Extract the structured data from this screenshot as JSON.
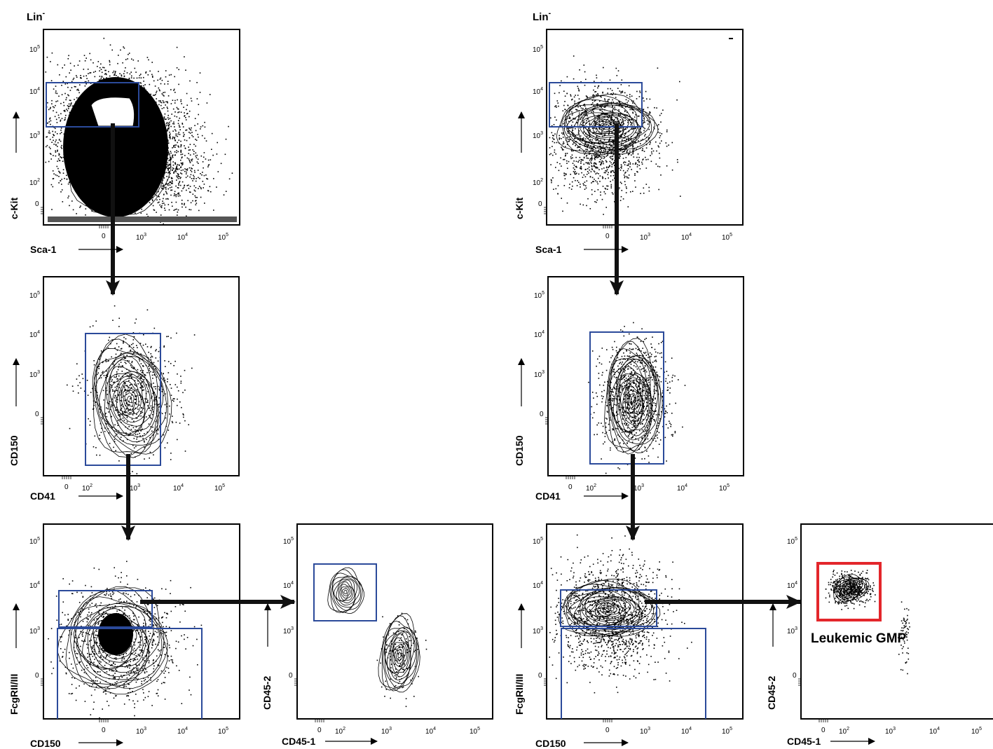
{
  "colors": {
    "gate": "#2b4a9a",
    "highlight": "#e3262b",
    "ink": "#000000"
  },
  "lin_label": "Lin",
  "lin_superscript": "-",
  "ticks": {
    "t0": "0",
    "e2": "10",
    "e3": "10",
    "e4": "10",
    "e5": "10",
    "p2": "2",
    "p3": "3",
    "p4": "4",
    "p5": "5"
  },
  "axes": {
    "ckit": "c-Kit",
    "sca1": "Sca-1",
    "cd150": "CD150",
    "cd41": "CD41",
    "fcgr": "FcgRII/III",
    "cd45_2": "CD45-2",
    "cd45_1": "CD45-1"
  },
  "leukemic_gmp_label": "Leukemic GMP"
}
